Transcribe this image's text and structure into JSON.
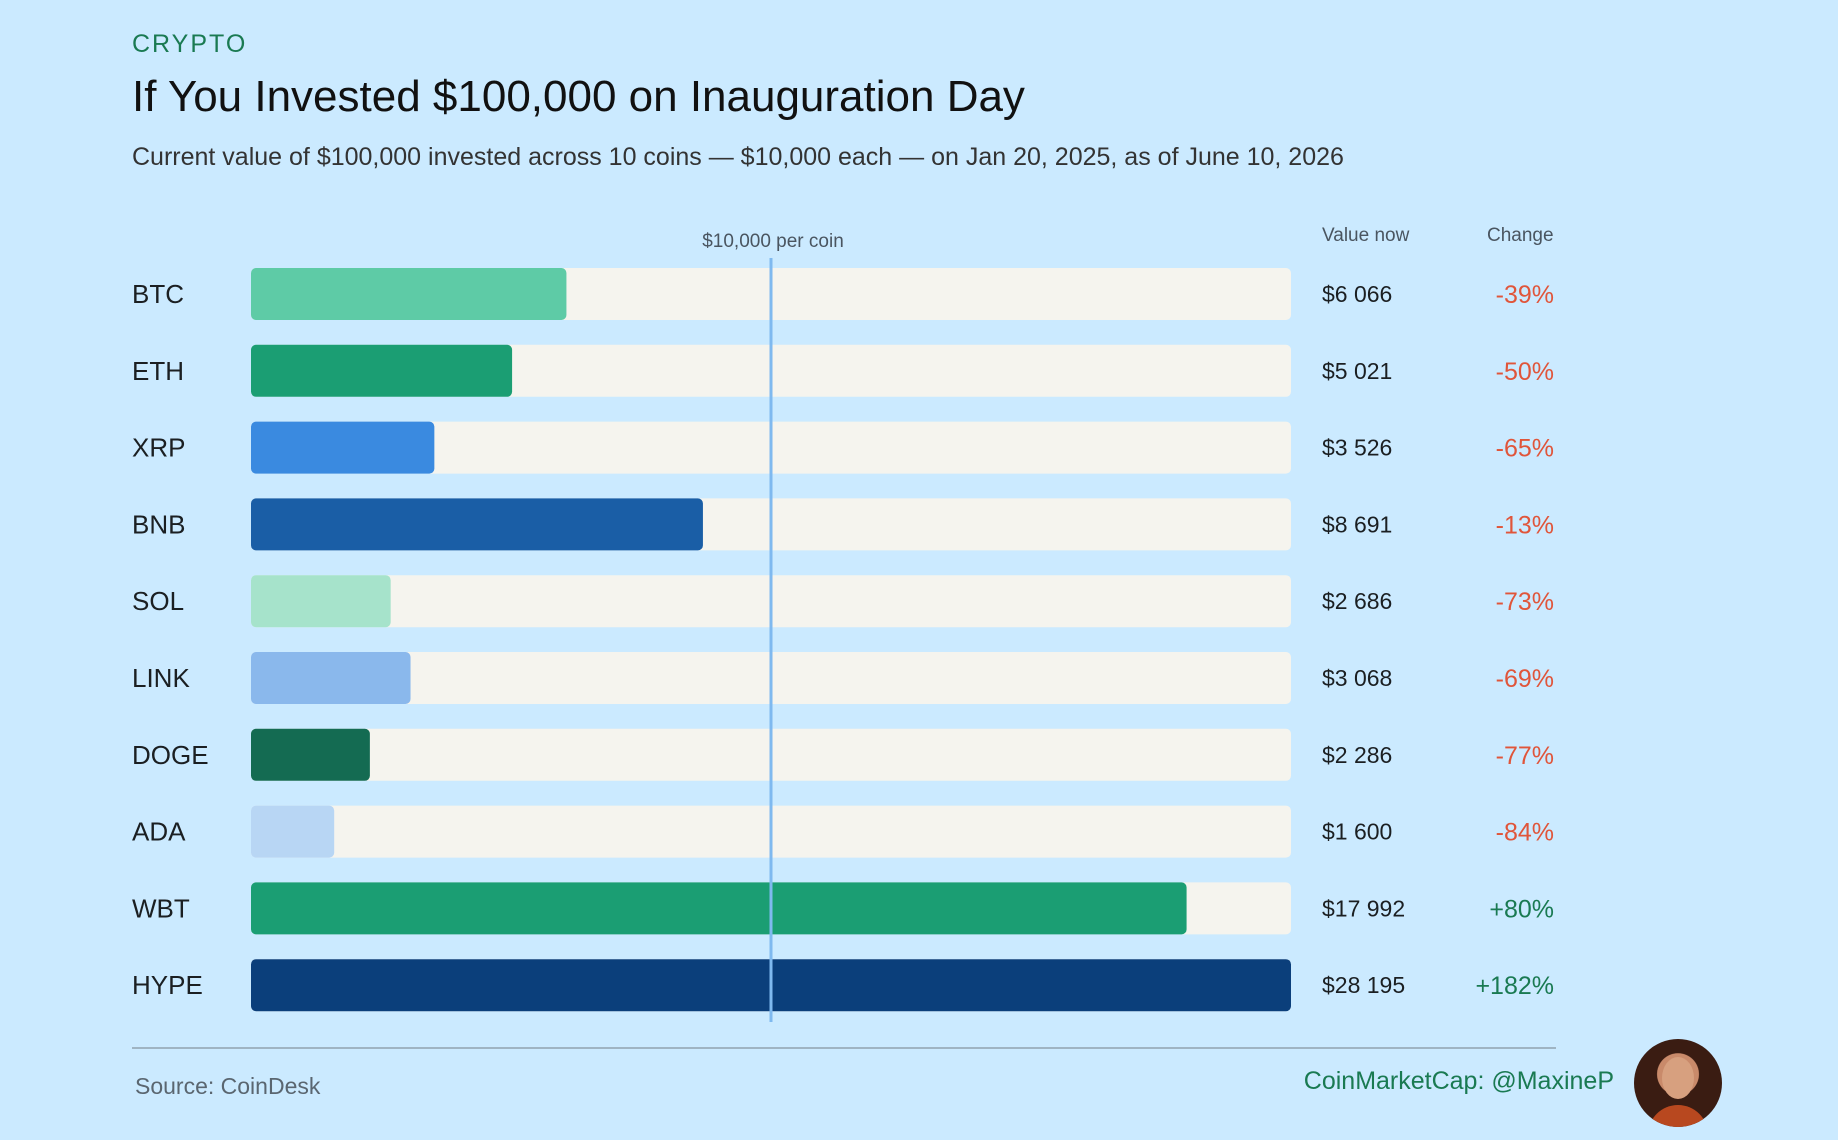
{
  "kicker": "CRYPTO",
  "title": "If You Invested $100,000 on Inauguration Day",
  "subtitle": "Current value of $100,000 invested across 10 coins — $10,000 each — on Jan 20, 2025, as of June 10, 2026",
  "columns": {
    "value": "Value now",
    "change": "Change"
  },
  "reference_label": "$10,000 per coin",
  "source": "Source: CoinDesk",
  "credit": "CoinMarketCap: @MaxineP",
  "colors": {
    "background": "#cbeaff",
    "track": "#f5f4ee",
    "reference_line": "#7fb9ef",
    "negative": "#e0553a",
    "positive": "#1a7a52"
  },
  "chart_data": {
    "type": "bar",
    "orientation": "horizontal",
    "reference_value": 10000,
    "xlim": [
      0,
      20000
    ],
    "categories": [
      "BTC",
      "ETH",
      "XRP",
      "BNB",
      "SOL",
      "LINK",
      "DOGE",
      "ADA",
      "WBT",
      "HYPE"
    ],
    "values": [
      6066,
      5021,
      3526,
      8691,
      2686,
      3068,
      2286,
      1600,
      17992,
      28195
    ],
    "value_labels": [
      "$6 066",
      "$5 021",
      "$3 526",
      "$8 691",
      "$2 686",
      "$3 068",
      "$2 286",
      "$1 600",
      "$17 992",
      "$28 195"
    ],
    "change_labels": [
      "-39%",
      "-50%",
      "-65%",
      "-13%",
      "-73%",
      "-69%",
      "-77%",
      "-84%",
      "+80%",
      "+182%"
    ],
    "bar_colors": [
      "#5ecba6",
      "#1b9e73",
      "#3a8ae0",
      "#1a5ea6",
      "#a6e3cb",
      "#8ab8ec",
      "#146b52",
      "#b8d6f4",
      "#1b9e73",
      "#0b3f7b"
    ]
  }
}
